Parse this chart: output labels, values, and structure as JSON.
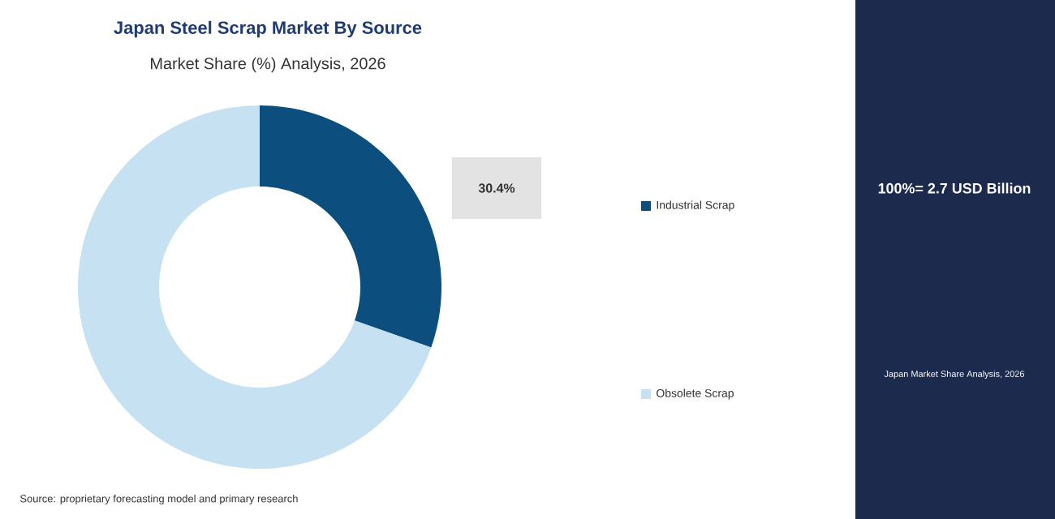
{
  "chart_data": {
    "type": "donut",
    "title": "Japan Steel Scrap Market By Source",
    "subtitle": "Market Share (%) Analysis, 2026",
    "categories": [
      "Industrial Scrap",
      "Obsolete Scrap"
    ],
    "values": [
      30.4,
      69.6
    ],
    "colors": [
      "#0c4f7e",
      "#c6e1f1"
    ],
    "value_labels": [
      "30.4%",
      null
    ],
    "legend": "right",
    "annotations": [
      "100%= 2.7 USD Billion",
      "Japan Market Share Analysis, 2026",
      "Source: proprietary forecasting model and primary research"
    ]
  }
}
